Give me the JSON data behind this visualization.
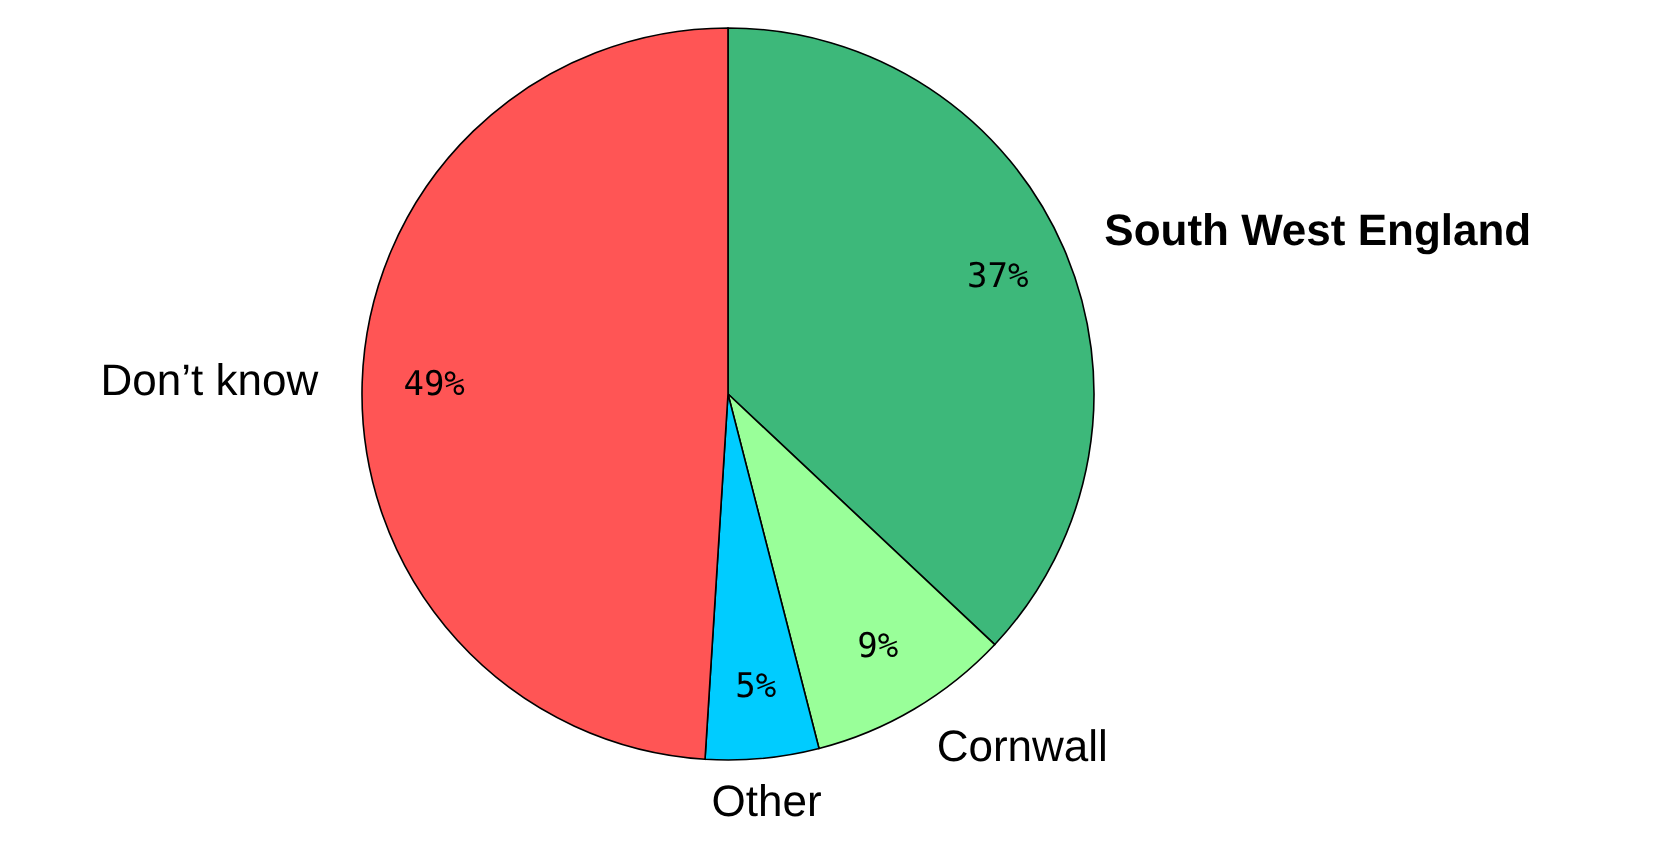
{
  "chart_data": {
    "type": "pie",
    "categories": [
      "South West England",
      "Cornwall",
      "Other",
      "Don’t know"
    ],
    "values": [
      37,
      9,
      5,
      49
    ],
    "colors": [
      "#3db87a",
      "#99ff99",
      "#00ccff",
      "#ff5555"
    ],
    "value_labels": [
      "37%",
      "9%",
      "5%",
      "49%"
    ]
  }
}
